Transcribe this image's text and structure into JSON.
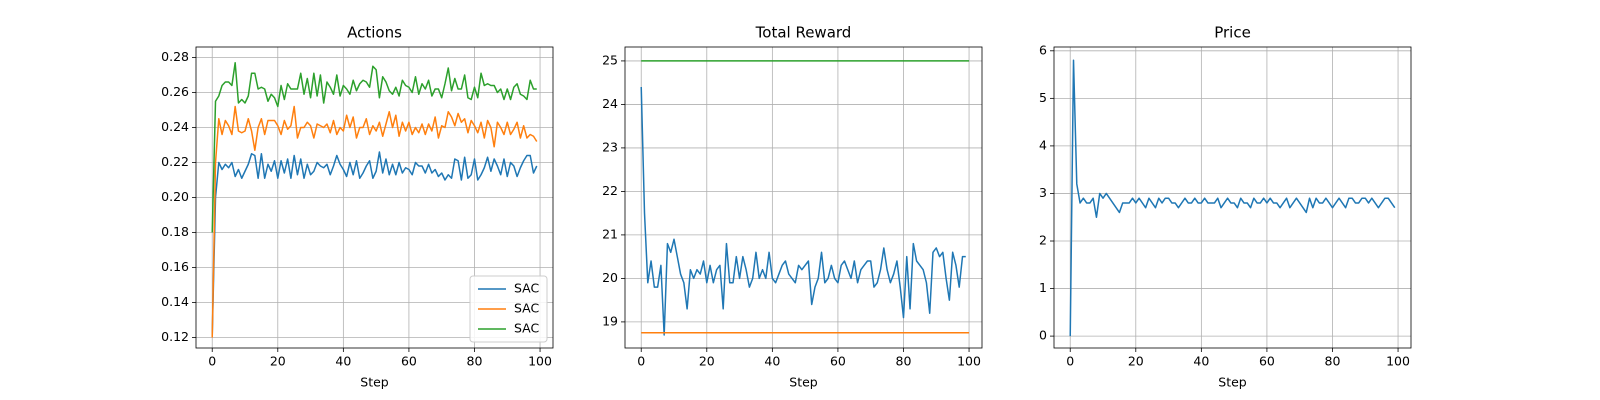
{
  "chart_data": [
    {
      "type": "line",
      "title": "Actions",
      "xlabel": "Step",
      "x": [
        0,
        1,
        2,
        3,
        4,
        5,
        6,
        7,
        8,
        9,
        10,
        11,
        12,
        13,
        14,
        15,
        16,
        17,
        18,
        19,
        20,
        21,
        22,
        23,
        24,
        25,
        26,
        27,
        28,
        29,
        30,
        31,
        32,
        33,
        34,
        35,
        36,
        37,
        38,
        39,
        40,
        41,
        42,
        43,
        44,
        45,
        46,
        47,
        48,
        49,
        50,
        51,
        52,
        53,
        54,
        55,
        56,
        57,
        58,
        59,
        60,
        61,
        62,
        63,
        64,
        65,
        66,
        67,
        68,
        69,
        70,
        71,
        72,
        73,
        74,
        75,
        76,
        77,
        78,
        79,
        80,
        81,
        82,
        83,
        84,
        85,
        86,
        87,
        88,
        89,
        90,
        91,
        92,
        93,
        94,
        95,
        96,
        97,
        98,
        99
      ],
      "series": [
        {
          "name": "SAC",
          "color": "#1f77b4",
          "values": [
            0.121,
            0.2,
            0.22,
            0.216,
            0.219,
            0.217,
            0.22,
            0.212,
            0.216,
            0.211,
            0.215,
            0.219,
            0.225,
            0.224,
            0.211,
            0.225,
            0.211,
            0.219,
            0.215,
            0.221,
            0.211,
            0.221,
            0.214,
            0.222,
            0.211,
            0.224,
            0.213,
            0.222,
            0.211,
            0.219,
            0.213,
            0.215,
            0.22,
            0.218,
            0.217,
            0.219,
            0.213,
            0.218,
            0.224,
            0.219,
            0.216,
            0.212,
            0.22,
            0.213,
            0.221,
            0.211,
            0.214,
            0.218,
            0.221,
            0.211,
            0.215,
            0.226,
            0.214,
            0.222,
            0.213,
            0.219,
            0.213,
            0.22,
            0.214,
            0.217,
            0.216,
            0.213,
            0.22,
            0.218,
            0.218,
            0.214,
            0.219,
            0.214,
            0.216,
            0.212,
            0.214,
            0.21,
            0.213,
            0.211,
            0.222,
            0.221,
            0.21,
            0.223,
            0.211,
            0.213,
            0.222,
            0.21,
            0.213,
            0.217,
            0.223,
            0.215,
            0.222,
            0.218,
            0.213,
            0.222,
            0.212,
            0.22,
            0.218,
            0.212,
            0.217,
            0.221,
            0.224,
            0.224,
            0.214,
            0.218
          ]
        },
        {
          "name": "SAC",
          "color": "#ff7f0e",
          "values": [
            0.12,
            0.22,
            0.245,
            0.236,
            0.244,
            0.241,
            0.236,
            0.252,
            0.238,
            0.237,
            0.238,
            0.245,
            0.238,
            0.227,
            0.24,
            0.245,
            0.236,
            0.244,
            0.244,
            0.244,
            0.241,
            0.236,
            0.244,
            0.239,
            0.241,
            0.252,
            0.234,
            0.24,
            0.24,
            0.243,
            0.241,
            0.234,
            0.242,
            0.241,
            0.24,
            0.242,
            0.237,
            0.244,
            0.236,
            0.24,
            0.238,
            0.247,
            0.24,
            0.246,
            0.234,
            0.24,
            0.24,
            0.245,
            0.236,
            0.241,
            0.238,
            0.243,
            0.235,
            0.242,
            0.249,
            0.24,
            0.247,
            0.235,
            0.243,
            0.238,
            0.243,
            0.236,
            0.24,
            0.237,
            0.242,
            0.236,
            0.242,
            0.238,
            0.246,
            0.234,
            0.241,
            0.24,
            0.249,
            0.246,
            0.241,
            0.248,
            0.243,
            0.245,
            0.237,
            0.244,
            0.241,
            0.237,
            0.243,
            0.234,
            0.244,
            0.24,
            0.229,
            0.243,
            0.24,
            0.236,
            0.243,
            0.236,
            0.239,
            0.243,
            0.234,
            0.241,
            0.234,
            0.236,
            0.235,
            0.232
          ]
        },
        {
          "name": "SAC",
          "color": "#2ca02c",
          "values": [
            0.18,
            0.255,
            0.258,
            0.264,
            0.266,
            0.266,
            0.264,
            0.277,
            0.254,
            0.256,
            0.254,
            0.258,
            0.271,
            0.271,
            0.262,
            0.263,
            0.262,
            0.255,
            0.259,
            0.257,
            0.252,
            0.264,
            0.256,
            0.265,
            0.262,
            0.262,
            0.262,
            0.271,
            0.259,
            0.268,
            0.257,
            0.271,
            0.258,
            0.27,
            0.254,
            0.266,
            0.263,
            0.259,
            0.27,
            0.258,
            0.264,
            0.262,
            0.259,
            0.267,
            0.261,
            0.265,
            0.267,
            0.266,
            0.263,
            0.275,
            0.273,
            0.257,
            0.269,
            0.266,
            0.261,
            0.259,
            0.263,
            0.258,
            0.267,
            0.264,
            0.263,
            0.26,
            0.269,
            0.259,
            0.265,
            0.262,
            0.267,
            0.258,
            0.262,
            0.262,
            0.257,
            0.265,
            0.274,
            0.261,
            0.268,
            0.262,
            0.262,
            0.27,
            0.257,
            0.256,
            0.263,
            0.257,
            0.271,
            0.264,
            0.265,
            0.264,
            0.264,
            0.26,
            0.262,
            0.256,
            0.262,
            0.256,
            0.263,
            0.265,
            0.259,
            0.258,
            0.256,
            0.267,
            0.262,
            0.262
          ]
        }
      ],
      "xlim": [
        -4.95,
        103.95
      ],
      "xticks": [
        0,
        20,
        40,
        60,
        80,
        100
      ],
      "ylim": [
        0.114,
        0.286
      ],
      "yticks": [
        0.12,
        0.14,
        0.16,
        0.18,
        {
          "value": 0.2,
          "label": "0.20"
        },
        0.22,
        0.24,
        0.26,
        0.28
      ],
      "grid": true,
      "legend": "lower right"
    },
    {
      "type": "line",
      "title": "Total Reward",
      "xlabel": "Step",
      "x": [
        0,
        1,
        2,
        3,
        4,
        5,
        6,
        7,
        8,
        9,
        10,
        11,
        12,
        13,
        14,
        15,
        16,
        17,
        18,
        19,
        20,
        21,
        22,
        23,
        24,
        25,
        26,
        27,
        28,
        29,
        30,
        31,
        32,
        33,
        34,
        35,
        36,
        37,
        38,
        39,
        40,
        41,
        42,
        43,
        44,
        45,
        46,
        47,
        48,
        49,
        50,
        51,
        52,
        53,
        54,
        55,
        56,
        57,
        58,
        59,
        60,
        61,
        62,
        63,
        64,
        65,
        66,
        67,
        68,
        69,
        70,
        71,
        72,
        73,
        74,
        75,
        76,
        77,
        78,
        79,
        80,
        81,
        82,
        83,
        84,
        85,
        86,
        87,
        88,
        89,
        90,
        91,
        92,
        93,
        94,
        95,
        96,
        97,
        98,
        99
      ],
      "series": [
        {
          "color": "#1f77b4",
          "values": [
            24.4,
            21.5,
            19.9,
            20.4,
            19.8,
            19.8,
            20.3,
            18.7,
            20.8,
            20.6,
            20.9,
            20.5,
            20.1,
            19.9,
            19.3,
            20.2,
            20.0,
            20.2,
            20.1,
            20.4,
            19.9,
            20.3,
            19.9,
            20.2,
            20.3,
            19.3,
            20.8,
            19.9,
            19.9,
            20.5,
            20.0,
            20.5,
            20.2,
            19.8,
            20.0,
            20.6,
            20.0,
            20.2,
            20.0,
            20.6,
            20.0,
            19.9,
            20.1,
            20.3,
            20.4,
            20.1,
            20.0,
            19.9,
            20.3,
            20.2,
            20.3,
            20.4,
            19.4,
            19.8,
            20.0,
            20.6,
            19.9,
            20.0,
            20.3,
            20.0,
            19.9,
            20.3,
            20.4,
            20.2,
            20.0,
            20.4,
            19.9,
            20.2,
            20.3,
            20.4,
            20.4,
            19.8,
            19.9,
            20.2,
            20.7,
            20.2,
            19.9,
            20.1,
            20.4,
            19.8,
            19.1,
            20.5,
            19.3,
            20.8,
            20.4,
            20.3,
            20.2,
            19.9,
            19.2,
            20.6,
            20.7,
            20.5,
            20.6,
            20.0,
            19.5,
            20.6,
            20.3,
            19.8,
            20.5,
            20.5
          ]
        },
        {
          "color": "#ff7f0e",
          "x": [
            0,
            100
          ],
          "values": [
            18.75,
            18.75
          ]
        },
        {
          "color": "#2ca02c",
          "x": [
            0,
            100
          ],
          "values": [
            25,
            25
          ]
        }
      ],
      "xlim": [
        -4.95,
        103.95
      ],
      "xticks": [
        0,
        20,
        40,
        60,
        80,
        100
      ],
      "ylim": [
        18.4,
        25.32
      ],
      "yticks": [
        19,
        20,
        21,
        22,
        23,
        24,
        25
      ],
      "grid": true
    },
    {
      "type": "line",
      "title": "Price",
      "xlabel": "Step",
      "x": [
        0,
        1,
        2,
        3,
        4,
        5,
        6,
        7,
        8,
        9,
        10,
        11,
        12,
        13,
        14,
        15,
        16,
        17,
        18,
        19,
        20,
        21,
        22,
        23,
        24,
        25,
        26,
        27,
        28,
        29,
        30,
        31,
        32,
        33,
        34,
        35,
        36,
        37,
        38,
        39,
        40,
        41,
        42,
        43,
        44,
        45,
        46,
        47,
        48,
        49,
        50,
        51,
        52,
        53,
        54,
        55,
        56,
        57,
        58,
        59,
        60,
        61,
        62,
        63,
        64,
        65,
        66,
        67,
        68,
        69,
        70,
        71,
        72,
        73,
        74,
        75,
        76,
        77,
        78,
        79,
        80,
        81,
        82,
        83,
        84,
        85,
        86,
        87,
        88,
        89,
        90,
        91,
        92,
        93,
        94,
        95,
        96,
        97,
        98,
        99
      ],
      "series": [
        {
          "color": "#1f77b4",
          "values": [
            0.0,
            5.8,
            3.2,
            2.8,
            2.9,
            2.8,
            2.8,
            2.9,
            2.5,
            3.0,
            2.9,
            3.0,
            2.9,
            2.8,
            2.7,
            2.6,
            2.8,
            2.8,
            2.8,
            2.9,
            2.8,
            2.9,
            2.8,
            2.7,
            2.9,
            2.8,
            2.7,
            2.9,
            2.8,
            2.9,
            2.9,
            2.8,
            2.8,
            2.7,
            2.8,
            2.9,
            2.8,
            2.8,
            2.9,
            2.8,
            2.8,
            2.9,
            2.8,
            2.8,
            2.8,
            2.9,
            2.7,
            2.8,
            2.9,
            2.8,
            2.8,
            2.7,
            2.9,
            2.8,
            2.8,
            2.7,
            2.9,
            2.8,
            2.8,
            2.9,
            2.8,
            2.9,
            2.8,
            2.8,
            2.7,
            2.8,
            2.9,
            2.7,
            2.8,
            2.9,
            2.8,
            2.7,
            2.6,
            2.9,
            2.7,
            2.9,
            2.8,
            2.8,
            2.9,
            2.8,
            2.7,
            2.8,
            2.9,
            2.8,
            2.7,
            2.9,
            2.9,
            2.8,
            2.8,
            2.9,
            2.9,
            2.8,
            2.9,
            2.8,
            2.7,
            2.8,
            2.9,
            2.9,
            2.8,
            2.7
          ]
        }
      ],
      "xlim": [
        -4.95,
        103.95
      ],
      "xticks": [
        0,
        20,
        40,
        60,
        80,
        100
      ],
      "ylim": [
        -0.25,
        6.08
      ],
      "yticks": [
        0,
        1,
        2,
        3,
        4,
        5,
        6
      ],
      "grid": true
    }
  ]
}
